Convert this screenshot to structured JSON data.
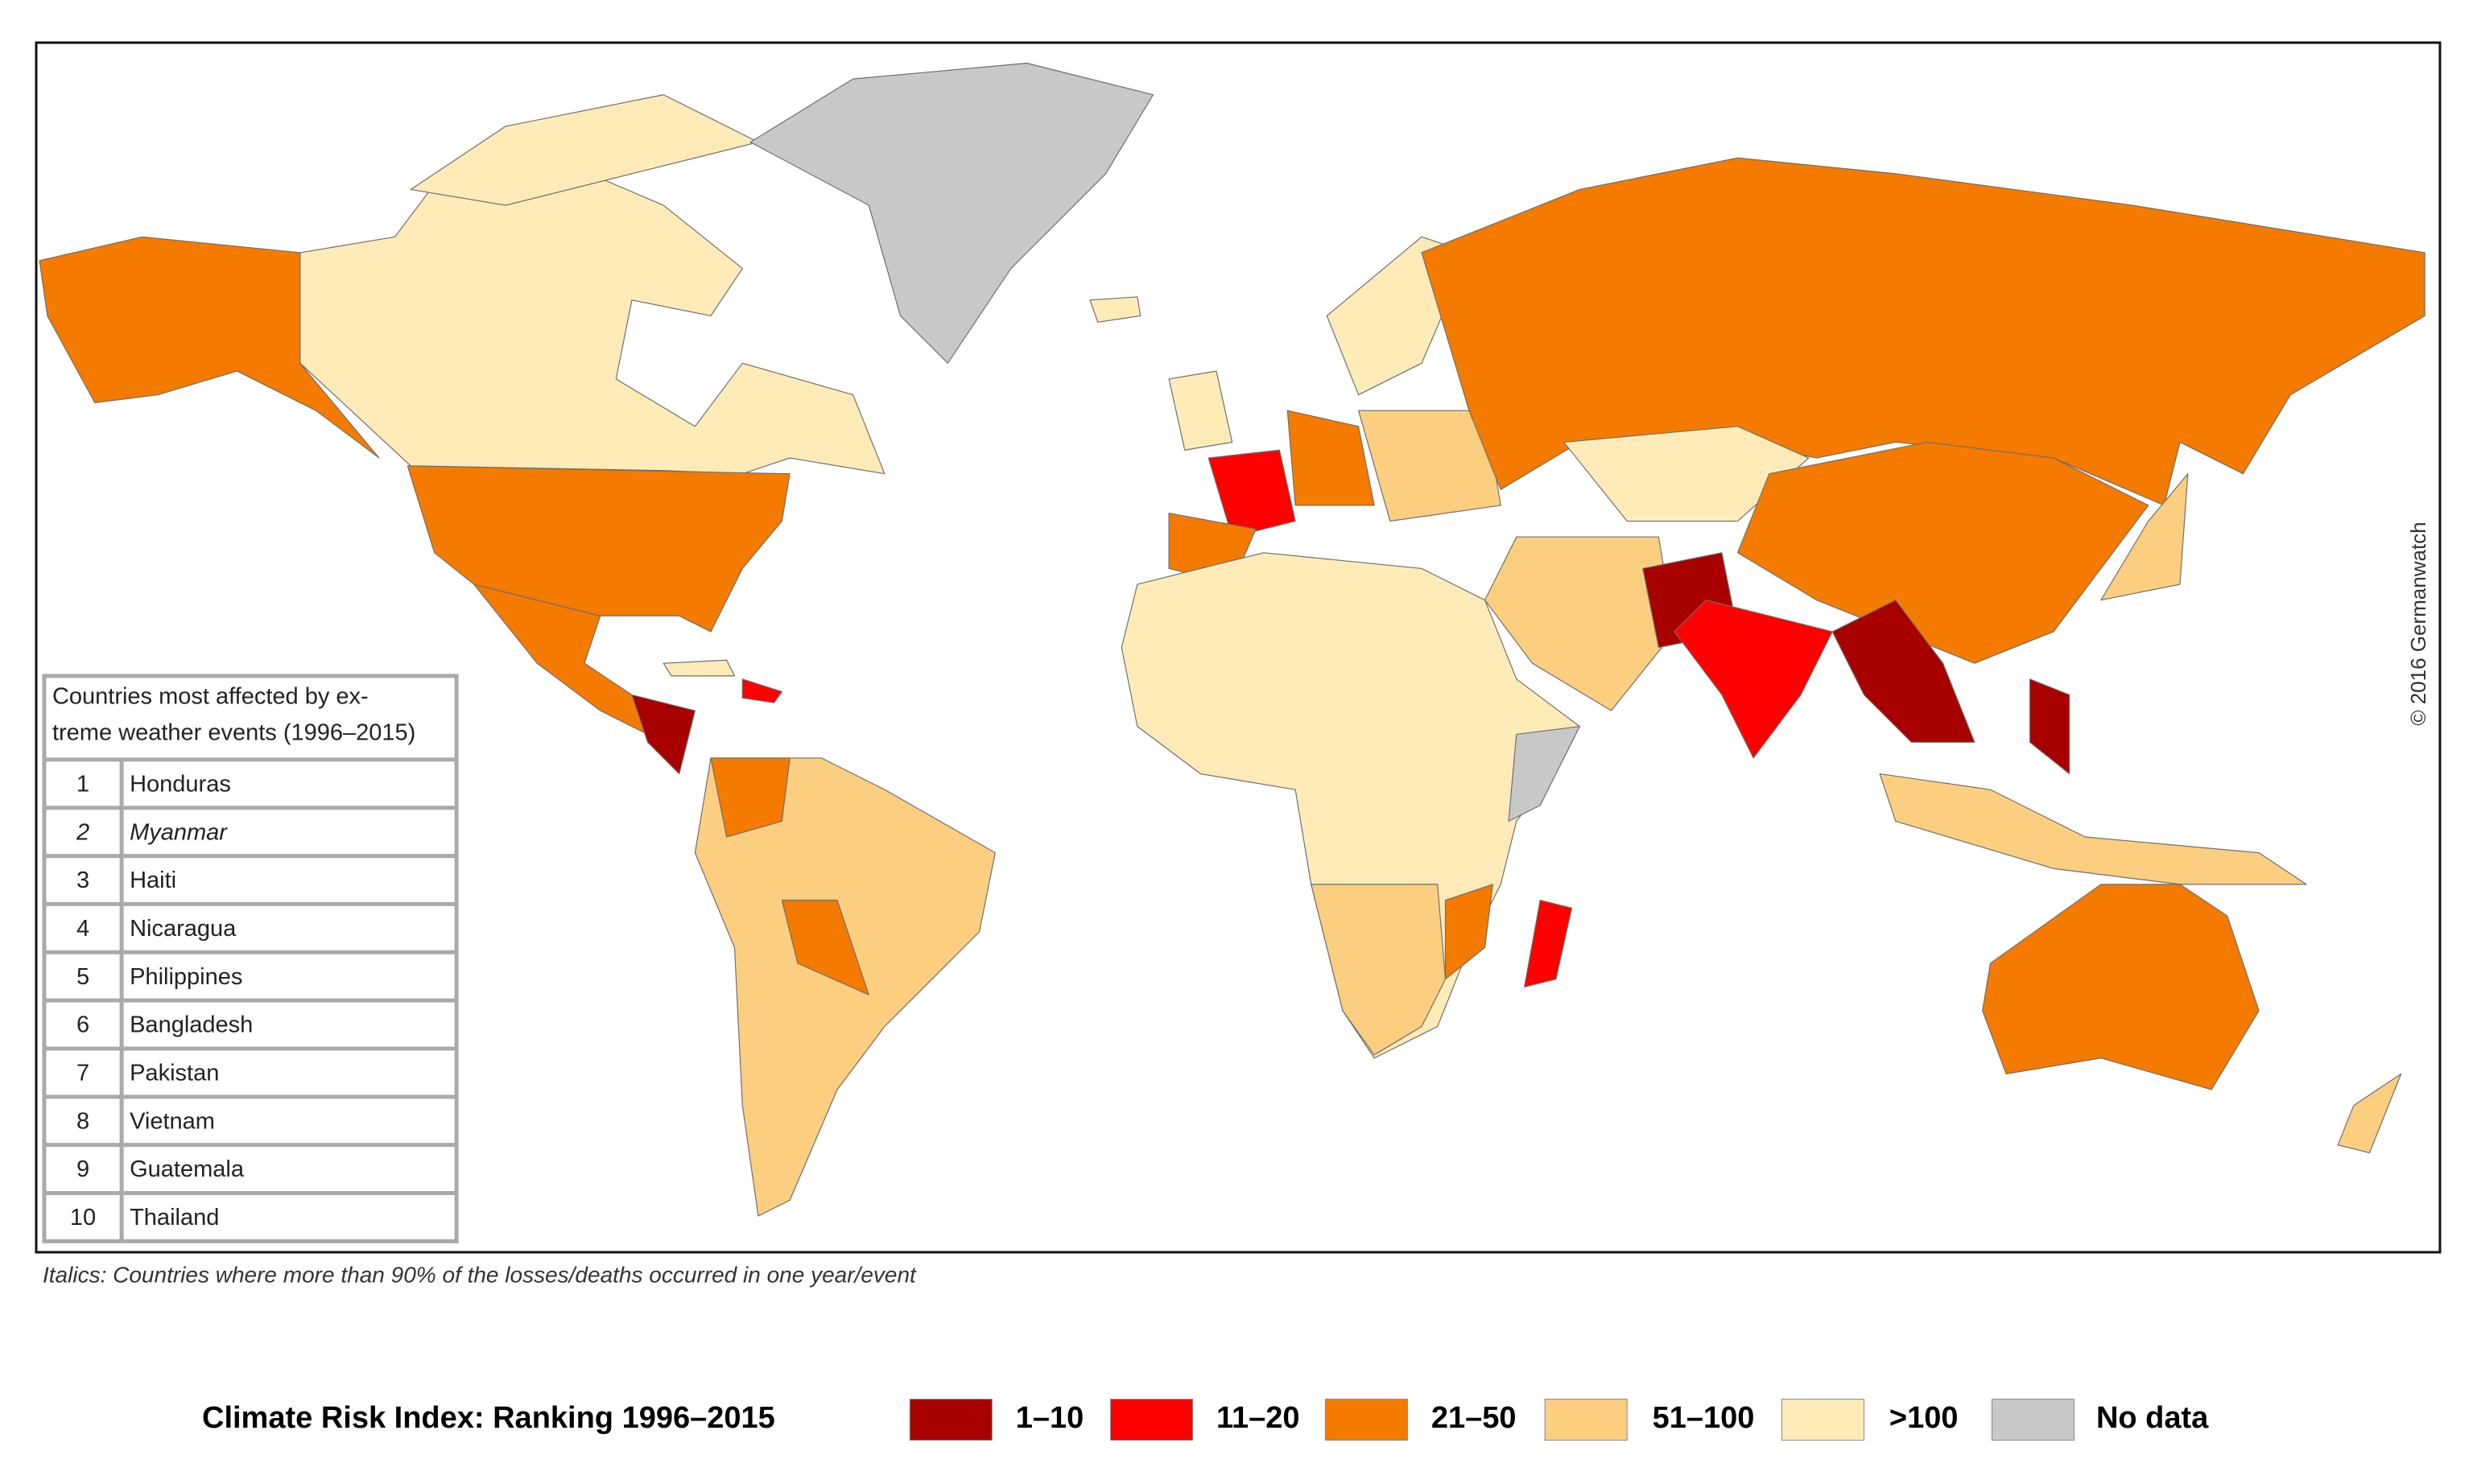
{
  "map": {
    "copyright": "© 2016 Germanwatch"
  },
  "table": {
    "title_lines": [
      "Countries most affected by ex-",
      "treme weather events (1996–2015)"
    ],
    "rows": [
      {
        "rank": 1,
        "country": "Honduras",
        "italic": false
      },
      {
        "rank": 2,
        "country": "Myanmar",
        "italic": true
      },
      {
        "rank": 3,
        "country": "Haiti",
        "italic": false
      },
      {
        "rank": 4,
        "country": "Nicaragua",
        "italic": false
      },
      {
        "rank": 5,
        "country": "Philippines",
        "italic": false
      },
      {
        "rank": 6,
        "country": "Bangladesh",
        "italic": false
      },
      {
        "rank": 7,
        "country": "Pakistan",
        "italic": false
      },
      {
        "rank": 8,
        "country": "Vietnam",
        "italic": false
      },
      {
        "rank": 9,
        "country": "Guatemala",
        "italic": false
      },
      {
        "rank": 10,
        "country": "Thailand",
        "italic": false
      }
    ]
  },
  "note": "Italics: Countries where more than 90% of the losses/deaths occurred in one year/event",
  "legend": {
    "title": "Climate Risk Index: Ranking 1996–2015",
    "items": [
      {
        "label": "1–10",
        "color": "#a80000"
      },
      {
        "label": "11–20",
        "color": "#ff0000"
      },
      {
        "label": "21–50",
        "color": "#f57a00"
      },
      {
        "label": "51–100",
        "color": "#fcce80"
      },
      {
        "label": ">100",
        "color": "#feebb8"
      },
      {
        "label": "No data",
        "color": "#c8c8c8"
      }
    ]
  }
}
